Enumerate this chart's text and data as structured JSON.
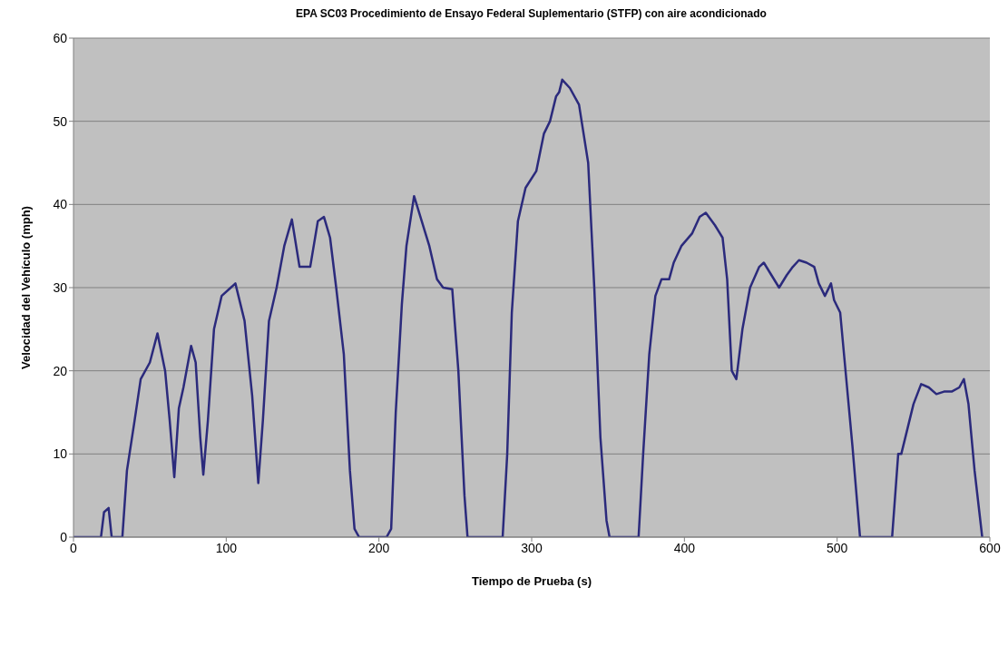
{
  "chart_data": {
    "type": "line",
    "title": "EPA SC03 Procedimiento de Ensayo Federal Suplementario (STFP) con aire acondicionado",
    "xlabel": "Tiempo de Prueba (s)",
    "ylabel": "Velocidad del Vehículo (mph)",
    "x": [
      0,
      18,
      20,
      23,
      25,
      32,
      35,
      40,
      44,
      50,
      55,
      60,
      63,
      66,
      69,
      72,
      77,
      80,
      83,
      85,
      88,
      92,
      97,
      103,
      106,
      112,
      117,
      121,
      124,
      128,
      133,
      138,
      143,
      148,
      155,
      160,
      164,
      168,
      172,
      177,
      181,
      184,
      187,
      205,
      208,
      211,
      215,
      218,
      223,
      228,
      233,
      238,
      242,
      248,
      252,
      256,
      258,
      281,
      284,
      287,
      291,
      296,
      303,
      308,
      312,
      316,
      318,
      320,
      325,
      331,
      337,
      341,
      345,
      349,
      351,
      370,
      373,
      377,
      381,
      385,
      390,
      393,
      398,
      405,
      410,
      414,
      420,
      425,
      428,
      431,
      434,
      438,
      443,
      449,
      452,
      457,
      462,
      467,
      471,
      475,
      480,
      485,
      488,
      492,
      496,
      498,
      502,
      505,
      510,
      515,
      536,
      540,
      542,
      546,
      550,
      555,
      560,
      565,
      570,
      575,
      580,
      583,
      586,
      590,
      595
    ],
    "series": [
      {
        "color": "#2b2a7c",
        "values": [
          0,
          0,
          3,
          3.5,
          0,
          0,
          8,
          14,
          19,
          21,
          24.5,
          20,
          14,
          7.2,
          15.5,
          18,
          23,
          21,
          12,
          7.5,
          14,
          25,
          29,
          30,
          30.5,
          26,
          17,
          6.5,
          14,
          26,
          30,
          35,
          38.2,
          32.5,
          32.5,
          38,
          38.5,
          36,
          30,
          22,
          8,
          1,
          0,
          0,
          1,
          15,
          28,
          35,
          41,
          38,
          35,
          31,
          30,
          29.8,
          20,
          5,
          0,
          0,
          10,
          27,
          38,
          42,
          44,
          48.5,
          50,
          53,
          53.5,
          55,
          54,
          52,
          45,
          30,
          12,
          2,
          0,
          0,
          10,
          22,
          29,
          31,
          31,
          33,
          35,
          36.5,
          38.5,
          39,
          37.5,
          36,
          31,
          20,
          19,
          25,
          30,
          32.5,
          33,
          31.5,
          30,
          31.5,
          32.5,
          33.3,
          33,
          32.5,
          30.5,
          29,
          30.5,
          28.5,
          27,
          21,
          11,
          0,
          0,
          10,
          10,
          13,
          16,
          18.4,
          18,
          17.2,
          17.5,
          17.5,
          18,
          19,
          16,
          8,
          0
        ]
      }
    ],
    "xlim": [
      0,
      600
    ],
    "xticks": [
      0,
      100,
      200,
      300,
      400,
      500,
      600
    ],
    "ylim": [
      0,
      60
    ],
    "yticks": [
      0,
      10,
      20,
      30,
      40,
      50,
      60
    ],
    "grid": "y",
    "legend": false,
    "marker": "none",
    "line_style": "solid"
  }
}
